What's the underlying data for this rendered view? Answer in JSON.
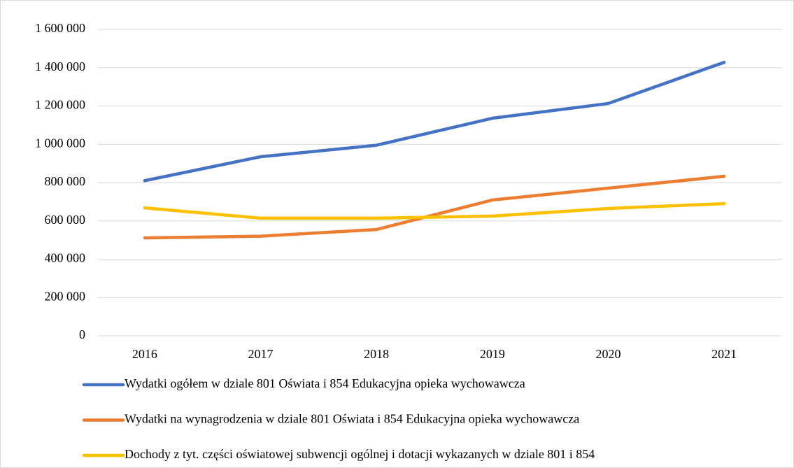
{
  "chart_data": {
    "type": "line",
    "categories": [
      "2016",
      "2017",
      "2018",
      "2019",
      "2020",
      "2021"
    ],
    "series": [
      {
        "name": "Wydatki ogółem w dziale 801 Oświata i 854 Edukacyjna opieka wychowawcza",
        "color": "#4472c4",
        "values": [
          810000,
          935000,
          995000,
          1136000,
          1213000,
          1428000
        ]
      },
      {
        "name": "Wydatki na wynagrodzenia w dziale 801 Oświata i 854 Edukacyjna opieka wychowawcza",
        "color": "#ed7d31",
        "values": [
          511000,
          520000,
          555000,
          709000,
          771000,
          833000
        ]
      },
      {
        "name": "Dochody z tyt. części oświatowej subwencji ogólnej i dotacji wykazanych w dziale 801 i 854",
        "color": "#ffc000",
        "values": [
          668000,
          614000,
          614000,
          625000,
          665000,
          690000
        ]
      }
    ],
    "ylim": [
      0,
      1600000
    ],
    "yticks": [
      0,
      {
        "value": 200000,
        "label": "200 000"
      },
      {
        "value": 400000,
        "label": "400 000"
      },
      {
        "value": 600000,
        "label": "600 000"
      },
      {
        "value": 800000,
        "label": "800 000"
      },
      {
        "value": 1000000,
        "label": "1 000 000"
      },
      {
        "value": 1200000,
        "label": "1 200 000"
      },
      {
        "value": 1400000,
        "label": "1 400 000"
      },
      {
        "value": 1600000,
        "label": "1 600 000"
      }
    ],
    "grid": true
  }
}
